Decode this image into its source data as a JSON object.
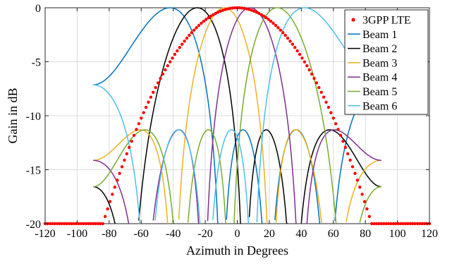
{
  "chart_data": {
    "type": "line",
    "title": "",
    "xlabel": "Azimuth in Degrees",
    "ylabel": "Gain in dB",
    "xlim": [
      -120,
      120
    ],
    "ylim": [
      -20,
      0
    ],
    "x_ticks": [
      -120,
      -100,
      -80,
      -60,
      -40,
      -20,
      0,
      20,
      40,
      60,
      80,
      100,
      120
    ],
    "x_tick_labels": [
      "-120",
      "-100",
      "-80",
      "-60",
      "-40",
      "-20",
      "0",
      "20",
      "40",
      "60",
      "80",
      "100",
      "120"
    ],
    "y_ticks": [
      -20,
      -15,
      -10,
      -5,
      0
    ],
    "y_tick_labels": [
      "-20",
      "-15",
      "-10",
      "-5",
      "0"
    ],
    "grid": true,
    "legend_position": "top-right",
    "reference": {
      "name": "3GPP LTE",
      "color": "#ff0000",
      "marker": "dot",
      "formula": "-min(12*(az/65)^2, 20)",
      "x": [
        -120,
        -110,
        -100,
        -90,
        -80,
        -70,
        -60,
        -50,
        -40,
        -30,
        -20,
        -10,
        0,
        10,
        20,
        30,
        40,
        50,
        60,
        70,
        80,
        90,
        100,
        110,
        120
      ],
      "y": [
        -20,
        -20,
        -20,
        -20,
        -18.18,
        -13.92,
        -10.22,
        -7.1,
        -4.54,
        -2.56,
        -1.14,
        -0.28,
        0,
        -0.28,
        -1.14,
        -2.56,
        -4.54,
        -7.1,
        -10.22,
        -13.92,
        -18.18,
        -20,
        -20,
        -20,
        -20
      ]
    },
    "series": [
      {
        "name": "Beam 1",
        "color": "#0072bd",
        "steer_deg": -42
      },
      {
        "name": "Beam 2",
        "color": "#000000",
        "steer_deg": -25
      },
      {
        "name": "Beam 3",
        "color": "#edb120",
        "steer_deg": -8
      },
      {
        "name": "Beam 4",
        "color": "#7e2f8e",
        "steer_deg": 8
      },
      {
        "name": "Beam 5",
        "color": "#77ac30",
        "steer_deg": 25
      },
      {
        "name": "Beam 6",
        "color": "#4dbeee",
        "steer_deg": 42
      }
    ]
  }
}
